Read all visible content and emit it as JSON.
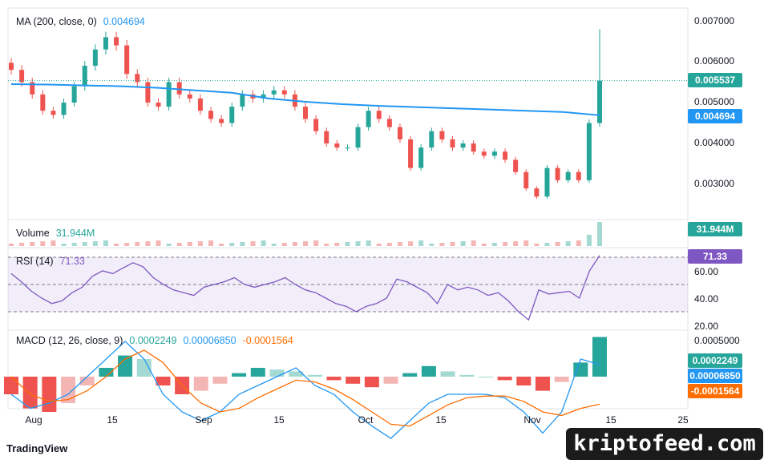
{
  "brand": {
    "name": "TradingView",
    "watermark": "kriptofeed.com"
  },
  "colors": {
    "up": "#26a69a",
    "down": "#ef5350",
    "ma": "#2196f3",
    "rsi": "#7e57c2",
    "macd": "#2196f3",
    "signal": "#ff6d00",
    "volUp": "#a3d9d2",
    "volDown": "#f4b6b4"
  },
  "chart_data": [
    {
      "type": "candlestick",
      "title": "MA (200, close, 0)",
      "legend_value": "0.004694",
      "ylim": [
        0.0025,
        0.0072
      ],
      "y_ticks": [
        "0.007000",
        "0.006000",
        "0.005000",
        "0.004000",
        "0.003000"
      ],
      "current_price": "0.005537",
      "ma_value": "0.004694",
      "x_ticks": [
        "Aug",
        "15",
        "Sep",
        "15",
        "Oct",
        "15",
        "Nov",
        "15",
        "25"
      ],
      "series": [
        {
          "name": "MA (200, close, 0)",
          "values": [
            0.00545,
            0.00544,
            0.00542,
            0.0054,
            0.00536,
            0.0053,
            0.00524,
            0.0051,
            0.00502,
            0.00496,
            0.00492,
            0.00489,
            0.00486,
            0.00483,
            0.0048,
            0.00477,
            0.00469
          ]
        }
      ],
      "candles_close": [
        0.0058,
        0.0055,
        0.0052,
        0.0048,
        0.0047,
        0.005,
        0.0054,
        0.0059,
        0.0063,
        0.0066,
        0.0064,
        0.0057,
        0.0055,
        0.005,
        0.0049,
        0.0055,
        0.0052,
        0.0051,
        0.0048,
        0.0046,
        0.0045,
        0.0049,
        0.0052,
        0.0051,
        0.0052,
        0.0053,
        0.0052,
        0.0049,
        0.0046,
        0.0043,
        0.004,
        0.0039,
        0.0039,
        0.0044,
        0.0048,
        0.0046,
        0.0044,
        0.0041,
        0.0034,
        0.0039,
        0.0043,
        0.0041,
        0.0039,
        0.004,
        0.0038,
        0.0037,
        0.0038,
        0.0036,
        0.0033,
        0.0029,
        0.0027,
        0.0034,
        0.0031,
        0.0033,
        0.0031,
        0.0045,
        0.005537
      ]
    },
    {
      "type": "bar",
      "title": "Volume",
      "legend_value": "31.944M"
    },
    {
      "type": "line",
      "title": "RSI (14)",
      "legend_value": "71.33",
      "y_ticks": [
        "60.00",
        "40.00",
        "20.00"
      ],
      "bands": [
        70,
        50,
        30
      ],
      "values": [
        58,
        52,
        45,
        40,
        36,
        38,
        44,
        48,
        56,
        60,
        58,
        62,
        66,
        63,
        55,
        50,
        46,
        44,
        42,
        48,
        50,
        52,
        55,
        50,
        48,
        50,
        52,
        55,
        50,
        46,
        44,
        40,
        36,
        34,
        30,
        34,
        36,
        40,
        54,
        52,
        48,
        44,
        36,
        50,
        46,
        48,
        46,
        42,
        44,
        38,
        30,
        24,
        46,
        43,
        44,
        45,
        40,
        60,
        71.33
      ]
    },
    {
      "type": "line",
      "title": "MACD (12, 26, close, 9)",
      "legend_values": [
        "0.0002249",
        "0.00006850",
        "-0.0001564"
      ],
      "y_ticks": [
        "0.0005000"
      ],
      "series": [
        {
          "name": "MACD",
          "values": [
            -0.0001,
            -0.00018,
            -0.00015,
            -0.0001,
            0.0,
            0.0001,
            0.0002,
            0.0001,
            -0.0001,
            -0.0002,
            -0.00025,
            -0.0002,
            -0.0001,
            -5e-05,
            0.0,
            5e-05,
            -5e-05,
            -0.0001,
            -0.0002,
            -0.00028,
            -0.00035,
            -0.00025,
            -0.00015,
            -0.0001,
            -0.0001,
            -0.0001,
            -0.00012,
            -0.0002,
            -0.00032,
            -0.0002,
            0.0001,
            6.85e-05
          ]
        },
        {
          "name": "Signal",
          "values": [
            0.0,
            -0.0001,
            -0.00014,
            -0.00013,
            -8e-05,
            0.0,
            0.0001,
            0.00015,
            8e-05,
            -5e-05,
            -0.00015,
            -0.0002,
            -0.00018,
            -0.00012,
            -7e-05,
            -2e-05,
            -3e-05,
            -7e-05,
            -0.00013,
            -0.0002,
            -0.00027,
            -0.00028,
            -0.00022,
            -0.00016,
            -0.00012,
            -0.00011,
            -0.00011,
            -0.00014,
            -0.0002,
            -0.00022,
            -0.00018,
            -0.0001564
          ]
        }
      ],
      "histogram": [
        -0.0001,
        -0.00018,
        -0.0002,
        -0.00015,
        -5e-05,
        5e-05,
        0.00012,
        0.0001,
        -5e-05,
        -0.0001,
        -8e-05,
        -4e-05,
        2e-05,
        5e-05,
        4e-05,
        3e-05,
        1e-05,
        -2e-05,
        -4e-05,
        -6e-05,
        -4e-05,
        2e-05,
        6e-05,
        3e-05,
        1e-05,
        0.0,
        -2e-05,
        -5e-05,
        -8e-05,
        -3e-05,
        8e-05,
        0.0002249
      ]
    }
  ]
}
